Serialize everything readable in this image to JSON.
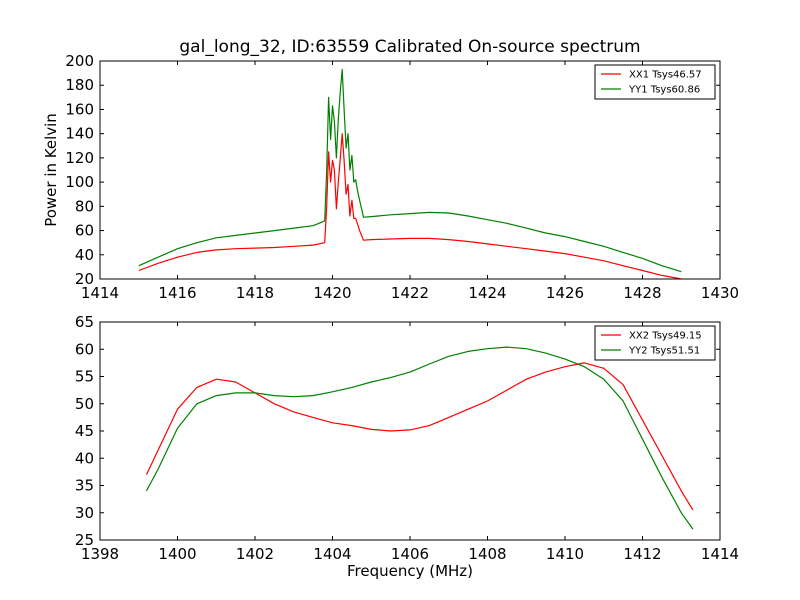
{
  "title": "gal_long_32, ID:63559 Calibrated On-source spectrum",
  "chart_data": [
    {
      "type": "line",
      "ylabel": "Power in Kelvin",
      "xlabel": "",
      "xlim": [
        1414,
        1430
      ],
      "ylim": [
        20,
        200
      ],
      "xticks": [
        1414,
        1416,
        1418,
        1420,
        1422,
        1424,
        1426,
        1428,
        1430
      ],
      "yticks": [
        20,
        40,
        60,
        80,
        100,
        120,
        140,
        160,
        180,
        200
      ],
      "grid": false,
      "legend_position": "top-right",
      "series": [
        {
          "name": "XX1 Tsys46.57",
          "color": "#ff0000",
          "x": [
            1415.0,
            1415.5,
            1416.0,
            1416.5,
            1417.0,
            1417.5,
            1418.0,
            1418.5,
            1419.0,
            1419.5,
            1419.8,
            1419.85,
            1419.9,
            1419.95,
            1420.0,
            1420.05,
            1420.1,
            1420.15,
            1420.2,
            1420.25,
            1420.3,
            1420.35,
            1420.4,
            1420.45,
            1420.5,
            1420.55,
            1420.6,
            1420.65,
            1420.7,
            1420.8,
            1421.0,
            1421.5,
            1422.0,
            1422.5,
            1423.0,
            1423.5,
            1424.0,
            1424.5,
            1425.0,
            1425.5,
            1426.0,
            1426.5,
            1427.0,
            1427.5,
            1428.0,
            1428.5,
            1429.0
          ],
          "y": [
            27,
            33,
            38,
            42,
            44,
            45,
            45.5,
            46,
            47,
            48,
            50,
            80,
            125,
            100,
            118,
            110,
            78,
            100,
            120,
            140,
            118,
            90,
            98,
            72,
            85,
            70,
            70,
            65,
            60,
            52,
            52.5,
            53,
            53.5,
            53.5,
            52.5,
            51,
            49,
            47,
            45,
            43,
            41,
            38,
            35,
            31,
            27,
            23,
            20
          ]
        },
        {
          "name": "YY1 Tsys60.86",
          "color": "#008000",
          "x": [
            1415.0,
            1415.5,
            1416.0,
            1416.5,
            1417.0,
            1417.5,
            1418.0,
            1418.5,
            1419.0,
            1419.5,
            1419.8,
            1419.85,
            1419.9,
            1419.95,
            1420.0,
            1420.05,
            1420.1,
            1420.15,
            1420.2,
            1420.25,
            1420.3,
            1420.35,
            1420.4,
            1420.45,
            1420.5,
            1420.55,
            1420.6,
            1420.65,
            1420.7,
            1420.8,
            1421.0,
            1421.5,
            1422.0,
            1422.5,
            1423.0,
            1423.5,
            1424.0,
            1424.5,
            1425.0,
            1425.5,
            1426.0,
            1426.5,
            1427.0,
            1427.5,
            1428.0,
            1428.5,
            1429.0
          ],
          "y": [
            31,
            38,
            45,
            50,
            54,
            56,
            58,
            60,
            62,
            64,
            68,
            110,
            170,
            135,
            163,
            150,
            120,
            152,
            175,
            193,
            160,
            128,
            140,
            110,
            122,
            100,
            102,
            92,
            85,
            71,
            71.5,
            73,
            74,
            75,
            74.5,
            72,
            69,
            66,
            62,
            58,
            55,
            51,
            47,
            42,
            37,
            31,
            26
          ]
        }
      ]
    },
    {
      "type": "line",
      "ylabel": "",
      "xlabel": "Frequency (MHz)",
      "xlim": [
        1398,
        1414
      ],
      "ylim": [
        25,
        65
      ],
      "xticks": [
        1398,
        1400,
        1402,
        1404,
        1406,
        1408,
        1410,
        1412,
        1414
      ],
      "yticks": [
        25,
        30,
        35,
        40,
        45,
        50,
        55,
        60,
        65
      ],
      "grid": false,
      "legend_position": "top-right",
      "series": [
        {
          "name": "XX2 Tsys49.15",
          "color": "#ff0000",
          "x": [
            1399.2,
            1399.5,
            1400.0,
            1400.5,
            1401.0,
            1401.5,
            1402.0,
            1402.5,
            1403.0,
            1403.5,
            1404.0,
            1404.5,
            1405.0,
            1405.5,
            1406.0,
            1406.5,
            1407.0,
            1407.5,
            1408.0,
            1408.5,
            1409.0,
            1409.5,
            1410.0,
            1410.5,
            1411.0,
            1411.5,
            1412.0,
            1412.5,
            1413.0,
            1413.3
          ],
          "y": [
            37,
            41.5,
            49,
            53,
            54.5,
            54,
            52,
            50,
            48.5,
            47.5,
            46.5,
            46,
            45.3,
            45,
            45.2,
            46,
            47.5,
            49,
            50.5,
            52.5,
            54.5,
            55.8,
            56.8,
            57.5,
            56.5,
            53.5,
            47,
            40.5,
            34,
            30.5
          ]
        },
        {
          "name": "YY2 Tsys51.51",
          "color": "#008000",
          "x": [
            1399.2,
            1399.5,
            1400.0,
            1400.5,
            1401.0,
            1401.5,
            1402.0,
            1402.5,
            1403.0,
            1403.5,
            1404.0,
            1404.5,
            1405.0,
            1405.5,
            1406.0,
            1406.5,
            1407.0,
            1407.5,
            1408.0,
            1408.5,
            1409.0,
            1409.5,
            1410.0,
            1410.5,
            1411.0,
            1411.5,
            1412.0,
            1412.5,
            1413.0,
            1413.3
          ],
          "y": [
            34,
            38,
            45.5,
            50,
            51.5,
            52,
            52,
            51.5,
            51.3,
            51.5,
            52.2,
            53,
            54,
            54.8,
            55.8,
            57.3,
            58.7,
            59.6,
            60.1,
            60.4,
            60.1,
            59.3,
            58.2,
            56.8,
            54.5,
            50.5,
            43.5,
            36.5,
            30,
            27
          ]
        }
      ]
    }
  ]
}
